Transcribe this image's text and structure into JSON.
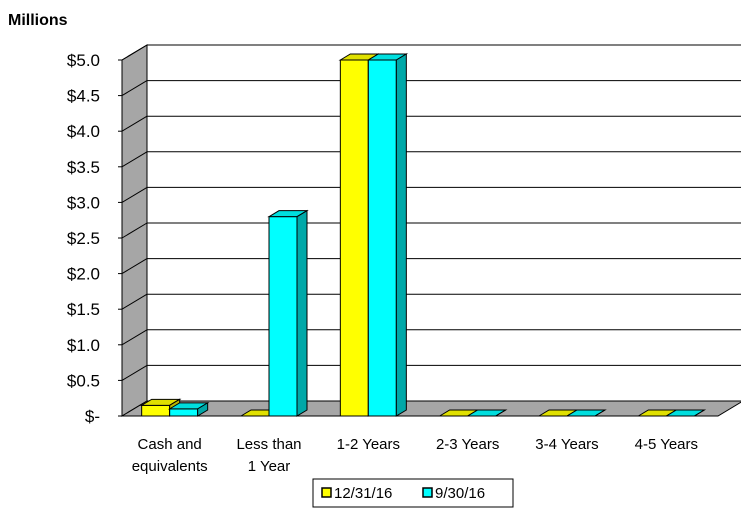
{
  "chart_data": {
    "type": "bar",
    "unit_label": "Millions",
    "categories": [
      [
        "Cash and",
        "equivalents"
      ],
      [
        "Less than",
        "1 Year"
      ],
      [
        "1-2 Years"
      ],
      [
        "2-3 Years"
      ],
      [
        "3-4 Years"
      ],
      [
        "4-5 Years"
      ]
    ],
    "series": [
      {
        "name": "12/31/16",
        "color": "#ffff00",
        "values": [
          0.15,
          0.0,
          5.0,
          0.0,
          0.0,
          0.0
        ]
      },
      {
        "name": "9/30/16",
        "color": "#00ffff",
        "values": [
          0.1,
          2.8,
          5.0,
          0.0,
          0.0,
          0.0
        ]
      }
    ],
    "ylim": [
      0,
      5.0
    ],
    "yticks": [
      {
        "value": 0,
        "label": "$-"
      },
      {
        "value": 0.5,
        "label": "$0.5"
      },
      {
        "value": 1.0,
        "label": "$1.0"
      },
      {
        "value": 1.5,
        "label": "$1.5"
      },
      {
        "value": 2.0,
        "label": "$2.0"
      },
      {
        "value": 2.5,
        "label": "$2.5"
      },
      {
        "value": 3.0,
        "label": "$3.0"
      },
      {
        "value": 3.5,
        "label": "$3.5"
      },
      {
        "value": 4.0,
        "label": "$4.0"
      },
      {
        "value": 4.5,
        "label": "$4.5"
      },
      {
        "value": 5.0,
        "label": "$5.0"
      }
    ],
    "grid": true,
    "legend_position": "bottom"
  }
}
